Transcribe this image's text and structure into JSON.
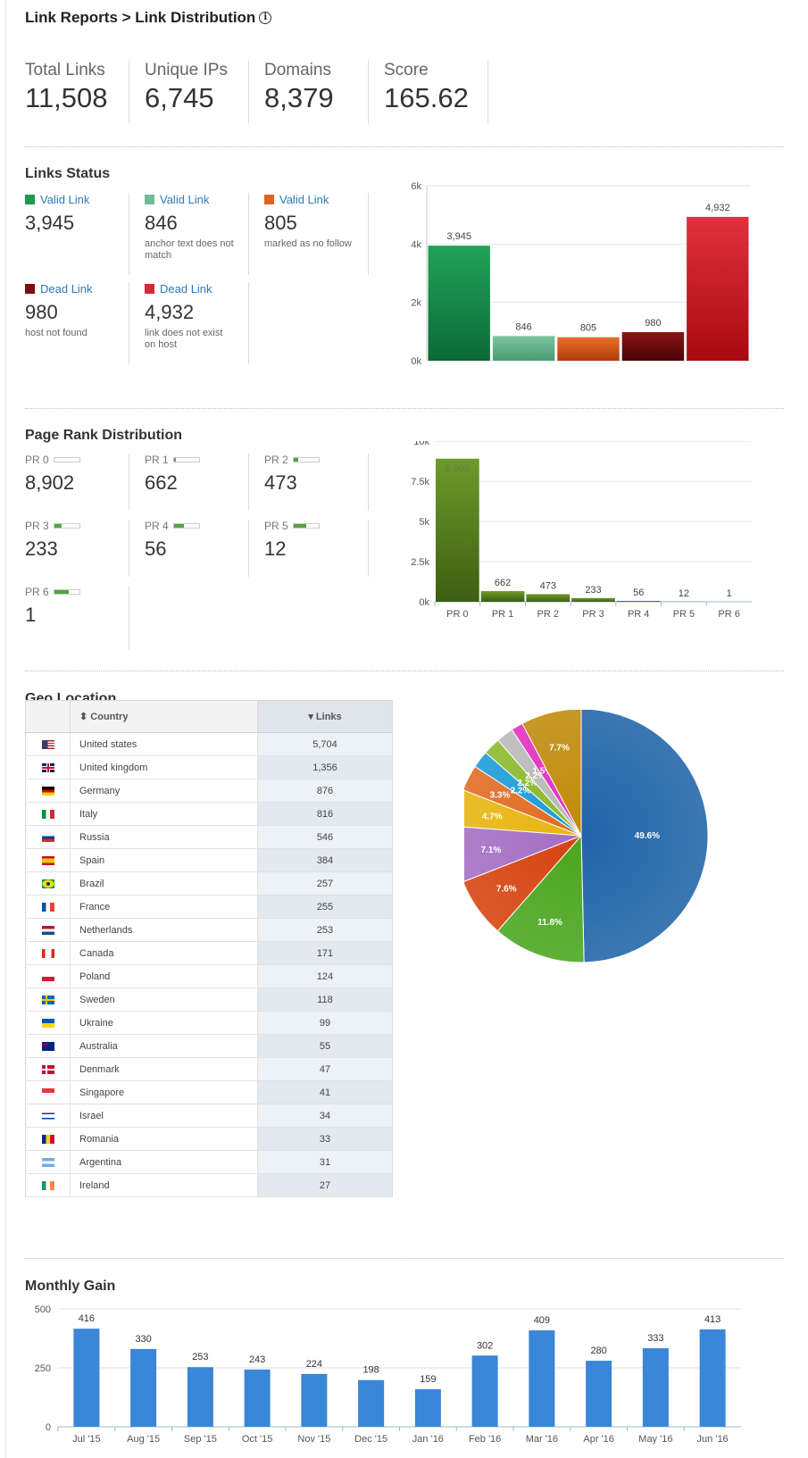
{
  "header": {
    "title": "Link Reports > Link Distribution",
    "info_icon": "info-icon"
  },
  "stats": [
    {
      "label": "Total Links",
      "value": "11,508"
    },
    {
      "label": "Unique IPs",
      "value": "6,745"
    },
    {
      "label": "Domains",
      "value": "8,379"
    },
    {
      "label": "Score",
      "value": "165.62"
    }
  ],
  "links_status": {
    "title": "Links Status",
    "items": [
      {
        "label": "Valid Link",
        "value": "3,945",
        "desc": "",
        "color": "#1e9a4f"
      },
      {
        "label": "Valid Link",
        "value": "846",
        "desc": "anchor text does not match",
        "color": "#6fbb94"
      },
      {
        "label": "Valid Link",
        "value": "805",
        "desc": "marked as no follow",
        "color": "#de6425"
      },
      {
        "label": "Dead Link",
        "value": "980",
        "desc": "host not found",
        "color": "#7a0e0e"
      },
      {
        "label": "Dead Link",
        "value": "4,932",
        "desc": "link does not exist on host",
        "color": "#d42a3c"
      }
    ]
  },
  "page_rank": {
    "title": "Page Rank Distribution",
    "items": [
      {
        "label": "PR 0",
        "value": "8,902",
        "level": 0
      },
      {
        "label": "PR 1",
        "value": "662",
        "level": 0.1
      },
      {
        "label": "PR 2",
        "value": "473",
        "level": 0.2
      },
      {
        "label": "PR 3",
        "value": "233",
        "level": 0.3
      },
      {
        "label": "PR 4",
        "value": "56",
        "level": 0.4
      },
      {
        "label": "PR 5",
        "value": "12",
        "level": 0.5
      },
      {
        "label": "PR 6",
        "value": "1",
        "level": 0.6
      }
    ]
  },
  "geo": {
    "title": "Geo Location",
    "col_country": "Country",
    "col_links": "Links",
    "sort_icon": "sort-icon",
    "sort_desc_icon": "sort-desc-icon",
    "rows": [
      {
        "country": "United states",
        "links": "5,704",
        "flag": "us-flag-icon"
      },
      {
        "country": "United kingdom",
        "links": "1,356",
        "flag": "uk-flag-icon"
      },
      {
        "country": "Germany",
        "links": "876",
        "flag": "de-flag-icon"
      },
      {
        "country": "Italy",
        "links": "816",
        "flag": "it-flag-icon"
      },
      {
        "country": "Russia",
        "links": "546",
        "flag": "ru-flag-icon"
      },
      {
        "country": "Spain",
        "links": "384",
        "flag": "es-flag-icon"
      },
      {
        "country": "Brazil",
        "links": "257",
        "flag": "br-flag-icon"
      },
      {
        "country": "France",
        "links": "255",
        "flag": "fr-flag-icon"
      },
      {
        "country": "Netherlands",
        "links": "253",
        "flag": "nl-flag-icon"
      },
      {
        "country": "Canada",
        "links": "171",
        "flag": "ca-flag-icon"
      },
      {
        "country": "Poland",
        "links": "124",
        "flag": "pl-flag-icon"
      },
      {
        "country": "Sweden",
        "links": "118",
        "flag": "se-flag-icon"
      },
      {
        "country": "Ukraine",
        "links": "99",
        "flag": "ua-flag-icon"
      },
      {
        "country": "Australia",
        "links": "55",
        "flag": "au-flag-icon"
      },
      {
        "country": "Denmark",
        "links": "47",
        "flag": "dk-flag-icon"
      },
      {
        "country": "Singapore",
        "links": "41",
        "flag": "sg-flag-icon"
      },
      {
        "country": "Israel",
        "links": "34",
        "flag": "il-flag-icon"
      },
      {
        "country": "Romania",
        "links": "33",
        "flag": "ro-flag-icon"
      },
      {
        "country": "Argentina",
        "links": "31",
        "flag": "ar-flag-icon"
      },
      {
        "country": "Ireland",
        "links": "27",
        "flag": "ie-flag-icon"
      }
    ]
  },
  "monthly": {
    "title": "Monthly Gain"
  },
  "chart_data": [
    {
      "type": "bar",
      "categories": [
        "Valid Link",
        "Valid Link",
        "Valid Link",
        "Dead Link",
        "Dead Link"
      ],
      "values": [
        3945,
        846,
        805,
        980,
        4932
      ],
      "value_labels": [
        "3,945",
        "846",
        "805",
        "980",
        "4,932"
      ],
      "colors": [
        [
          "#22a35a",
          "#0a6a36"
        ],
        [
          "#7cc4a0",
          "#4a9c74"
        ],
        [
          "#e8702c",
          "#b03c0a"
        ],
        [
          "#8a1515",
          "#4a0404"
        ],
        [
          "#e0303f",
          "#a80a12"
        ]
      ],
      "yticks": [
        "0k",
        "2k",
        "4k",
        "6k"
      ],
      "ylim": [
        0,
        6000
      ]
    },
    {
      "type": "bar",
      "categories": [
        "PR 0",
        "PR 1",
        "PR 2",
        "PR 3",
        "PR 4",
        "PR 5",
        "PR 6"
      ],
      "values": [
        8902,
        662,
        473,
        233,
        56,
        12,
        1
      ],
      "value_labels": [
        "8,902",
        "662",
        "473",
        "233",
        "56",
        "12",
        "1"
      ],
      "color_top": "#6e9a2a",
      "color_bottom": "#3d5e12",
      "yticks": [
        "0k",
        "2.5k",
        "5k",
        "7.5k",
        "10k"
      ],
      "ylim": [
        0,
        10000
      ]
    },
    {
      "type": "pie",
      "slices": [
        {
          "value": 49.6,
          "label": "49.6%",
          "color": "#2064a8"
        },
        {
          "value": 11.8,
          "label": "11.8%",
          "color": "#4aa61e"
        },
        {
          "value": 7.6,
          "label": "7.6%",
          "color": "#d6420e"
        },
        {
          "value": 7.1,
          "label": "7.1%",
          "color": "#a46ec2"
        },
        {
          "value": 4.7,
          "label": "4.7%",
          "color": "#e8b40e"
        },
        {
          "value": 3.3,
          "label": "3.3%",
          "color": "#e06a20"
        },
        {
          "value": 2.2,
          "label": "2.2%",
          "color": "#1a9ad8"
        },
        {
          "value": 2.2,
          "label": "2.2%",
          "color": "#8ab82a"
        },
        {
          "value": 2.2,
          "label": "2.2%",
          "color": "#b8b8b8"
        },
        {
          "value": 1.5,
          "label": "1.5%",
          "color": "#e22ec0"
        },
        {
          "value": 7.7,
          "label": "7.7%",
          "color": "#c08a0a"
        }
      ]
    },
    {
      "type": "bar",
      "categories": [
        "Jul '15",
        "Aug '15",
        "Sep '15",
        "Oct '15",
        "Nov '15",
        "Dec '15",
        "Jan '16",
        "Feb '16",
        "Mar '16",
        "Apr '16",
        "May '16",
        "Jun '16"
      ],
      "values": [
        416,
        330,
        253,
        243,
        224,
        198,
        159,
        302,
        409,
        280,
        333,
        413
      ],
      "color": "#3a86d8",
      "yticks": [
        "0",
        "250",
        "500"
      ],
      "ylim": [
        0,
        500
      ]
    }
  ]
}
